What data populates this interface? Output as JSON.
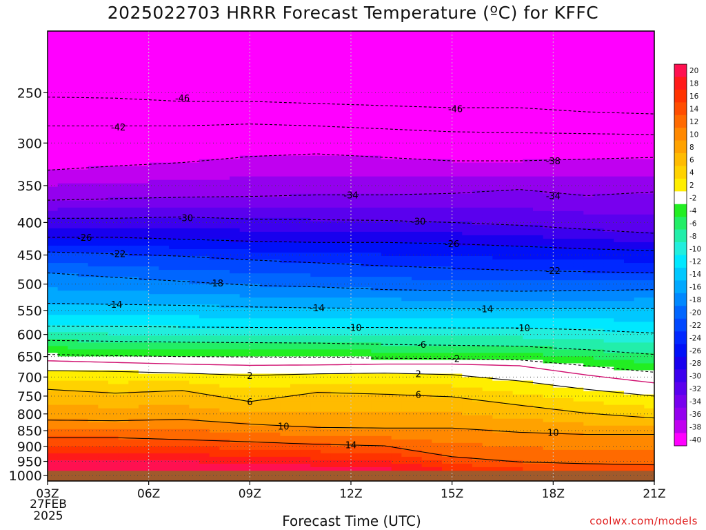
{
  "title": "2025022703 HRRR Forecast Temperature (ºC) for KFFC",
  "xlabel": "Forecast Time (UTC)",
  "credit": "coolwx.com/models",
  "start_date": {
    "line1": "27FEB",
    "line2": "2025"
  },
  "colors": {
    "ground": "#a05a2c",
    "freezing_line": "#d01070",
    "grid": "#c8c8c8"
  },
  "chart_data": {
    "type": "heatmap",
    "title": "2025022703 HRRR Forecast Temperature (ºC) for KFFC",
    "xlabel": "Forecast Time (UTC)",
    "ylabel": "",
    "x_ticks": [
      "03Z",
      "06Z",
      "09Z",
      "12Z",
      "15Z",
      "18Z",
      "21Z"
    ],
    "x_hours": [
      3,
      6,
      9,
      12,
      15,
      18,
      21
    ],
    "xlim": [
      3,
      21
    ],
    "y_ticks": [
      250,
      300,
      350,
      400,
      450,
      500,
      550,
      600,
      650,
      700,
      750,
      800,
      850,
      900,
      950,
      1000
    ],
    "ylim_hPa": [
      200,
      1020
    ],
    "y_scale": "log",
    "grid": true,
    "ground_level_hPa": 983,
    "colorbar": {
      "labels": [
        "20",
        "18",
        "16",
        "14",
        "12",
        "10",
        "8",
        "6",
        "4",
        "2",
        "-2",
        "-4",
        "-6",
        "-8",
        "-10",
        "-12",
        "-14",
        "-16",
        "-18",
        "-20",
        "-22",
        "-24",
        "-26",
        "-28",
        "-30",
        "-32",
        "-34",
        "-36",
        "-38",
        "-40"
      ],
      "colors": [
        "#ff1050",
        "#ff1a1a",
        "#ff3300",
        "#ff4d00",
        "#ff6a00",
        "#ff8800",
        "#ffa200",
        "#ffbb00",
        "#ffd200",
        "#ffee00",
        "#ffffff",
        "#22ee22",
        "#22ee66",
        "#22eeaa",
        "#22eedd",
        "#00e8ff",
        "#00c8ff",
        "#00a8ff",
        "#0088ff",
        "#0066ff",
        "#0048ff",
        "#0028ff",
        "#0010f8",
        "#1800ee",
        "#3c00ee",
        "#5a00ee",
        "#7800ee",
        "#9400ee",
        "#c000f0",
        "#ff00ff"
      ]
    },
    "isotherms": [
      {
        "label": "-46",
        "style": "dashed",
        "series": [
          [
            3,
            254
          ],
          [
            5,
            255
          ],
          [
            7,
            258
          ],
          [
            9,
            258
          ],
          [
            11,
            260
          ],
          [
            13,
            262
          ],
          [
            15,
            264
          ],
          [
            17,
            264
          ],
          [
            19,
            268
          ],
          [
            21,
            270
          ]
        ]
      },
      {
        "label": "-42",
        "style": "dashed",
        "series": [
          [
            3,
            282
          ],
          [
            5,
            282
          ],
          [
            7,
            282
          ],
          [
            9,
            280
          ],
          [
            11,
            282
          ],
          [
            13,
            285
          ],
          [
            15,
            288
          ],
          [
            17,
            289
          ],
          [
            19,
            290
          ],
          [
            21,
            291
          ]
        ]
      },
      {
        "label": "-38",
        "style": "dashed",
        "series": [
          [
            3,
            331
          ],
          [
            5,
            326
          ],
          [
            7,
            322
          ],
          [
            9,
            315
          ],
          [
            11,
            312
          ],
          [
            13,
            316
          ],
          [
            15,
            320
          ],
          [
            17,
            320
          ],
          [
            19,
            318
          ],
          [
            21,
            316
          ]
        ]
      },
      {
        "label": "-34",
        "style": "dashed",
        "series": [
          [
            3,
            369
          ],
          [
            5,
            367
          ],
          [
            7,
            365
          ],
          [
            9,
            364
          ],
          [
            11,
            362
          ],
          [
            13,
            362
          ],
          [
            15,
            360
          ],
          [
            17,
            355
          ],
          [
            19,
            363
          ],
          [
            21,
            358
          ]
        ]
      },
      {
        "label": "-30",
        "style": "dashed",
        "series": [
          [
            3,
            394
          ],
          [
            5,
            394
          ],
          [
            7,
            392
          ],
          [
            9,
            395
          ],
          [
            11,
            396
          ],
          [
            13,
            397
          ],
          [
            15,
            400
          ],
          [
            17,
            404
          ],
          [
            19,
            410
          ],
          [
            21,
            416
          ]
        ]
      },
      {
        "label": "-26",
        "style": "dashed",
        "series": [
          [
            3,
            422
          ],
          [
            5,
            422
          ],
          [
            7,
            425
          ],
          [
            9,
            428
          ],
          [
            11,
            430
          ],
          [
            13,
            430
          ],
          [
            15,
            432
          ],
          [
            17,
            436
          ],
          [
            19,
            440
          ],
          [
            21,
            443
          ]
        ]
      },
      {
        "label": "-22",
        "style": "dashed",
        "series": [
          [
            3,
            445
          ],
          [
            5,
            448
          ],
          [
            7,
            452
          ],
          [
            9,
            458
          ],
          [
            11,
            463
          ],
          [
            13,
            468
          ],
          [
            15,
            472
          ],
          [
            17,
            476
          ],
          [
            19,
            478
          ],
          [
            21,
            480
          ]
        ]
      },
      {
        "label": "-18",
        "style": "dashed",
        "series": [
          [
            3,
            480
          ],
          [
            5,
            488
          ],
          [
            7,
            495
          ],
          [
            9,
            502
          ],
          [
            11,
            505
          ],
          [
            13,
            510
          ],
          [
            15,
            512
          ],
          [
            17,
            513
          ],
          [
            19,
            512
          ],
          [
            21,
            510
          ]
        ]
      },
      {
        "label": "-14",
        "style": "dashed",
        "series": [
          [
            3,
            536
          ],
          [
            5,
            538
          ],
          [
            7,
            540
          ],
          [
            9,
            543
          ],
          [
            11,
            545
          ],
          [
            13,
            546
          ],
          [
            15,
            547
          ],
          [
            17,
            547
          ],
          [
            19,
            546
          ],
          [
            21,
            546
          ]
        ]
      },
      {
        "label": "-10",
        "style": "dashed",
        "series": [
          [
            3,
            582
          ],
          [
            5,
            583
          ],
          [
            7,
            584
          ],
          [
            9,
            585
          ],
          [
            11,
            585
          ],
          [
            13,
            585
          ],
          [
            15,
            586
          ],
          [
            17,
            586
          ],
          [
            19,
            590
          ],
          [
            21,
            597
          ]
        ]
      },
      {
        "label": "-6",
        "style": "dashed",
        "series": [
          [
            3,
            613
          ],
          [
            5,
            615
          ],
          [
            7,
            617
          ],
          [
            9,
            618
          ],
          [
            11,
            619
          ],
          [
            13,
            622
          ],
          [
            15,
            624
          ],
          [
            17,
            626
          ],
          [
            19,
            634
          ],
          [
            21,
            645
          ]
        ]
      },
      {
        "label": "-2",
        "style": "dashed",
        "series": [
          [
            3,
            645
          ],
          [
            5,
            648
          ],
          [
            7,
            650
          ],
          [
            9,
            651
          ],
          [
            11,
            652
          ],
          [
            13,
            654
          ],
          [
            15,
            655
          ],
          [
            17,
            658
          ],
          [
            19,
            672
          ],
          [
            21,
            688
          ]
        ]
      },
      {
        "label": "",
        "style": "freezing",
        "series": [
          [
            3,
            660
          ],
          [
            5,
            664
          ],
          [
            7,
            668
          ],
          [
            9,
            671
          ],
          [
            11,
            670
          ],
          [
            13,
            668
          ],
          [
            15,
            668
          ],
          [
            17,
            672
          ],
          [
            19,
            695
          ],
          [
            21,
            715
          ]
        ]
      },
      {
        "label": "2",
        "style": "solid",
        "series": [
          [
            3,
            684
          ],
          [
            5,
            686
          ],
          [
            7,
            690
          ],
          [
            9,
            696
          ],
          [
            11,
            692
          ],
          [
            13,
            690
          ],
          [
            15,
            694
          ],
          [
            17,
            710
          ],
          [
            19,
            732
          ],
          [
            21,
            750
          ]
        ]
      },
      {
        "label": "6",
        "style": "solid",
        "series": [
          [
            3,
            732
          ],
          [
            5,
            742
          ],
          [
            7,
            735
          ],
          [
            9,
            765
          ],
          [
            11,
            740
          ],
          [
            13,
            745
          ],
          [
            15,
            752
          ],
          [
            17,
            775
          ],
          [
            19,
            798
          ],
          [
            21,
            812
          ]
        ]
      },
      {
        "label": "10",
        "style": "solid",
        "series": [
          [
            3,
            818
          ],
          [
            5,
            820
          ],
          [
            7,
            816
          ],
          [
            9,
            830
          ],
          [
            11,
            840
          ],
          [
            13,
            842
          ],
          [
            15,
            842
          ],
          [
            17,
            855
          ],
          [
            19,
            862
          ],
          [
            21,
            862
          ]
        ]
      },
      {
        "label": "14",
        "style": "solid",
        "series": [
          [
            3,
            872
          ],
          [
            5,
            872
          ],
          [
            7,
            878
          ],
          [
            9,
            885
          ],
          [
            11,
            893
          ],
          [
            13,
            898
          ],
          [
            15,
            934
          ],
          [
            17,
            952
          ],
          [
            19,
            958
          ],
          [
            21,
            962
          ]
        ]
      }
    ],
    "inline_labels": [
      {
        "text": "-46",
        "hour": 7.0,
        "hPa": 255
      },
      {
        "text": "-46",
        "hour": 15.1,
        "hPa": 265
      },
      {
        "text": "-42",
        "hour": 5.1,
        "hPa": 283
      },
      {
        "text": "-38",
        "hour": 18.0,
        "hPa": 320
      },
      {
        "text": "-34",
        "hour": 12.0,
        "hPa": 362
      },
      {
        "text": "-34",
        "hour": 18.0,
        "hPa": 363
      },
      {
        "text": "-30",
        "hour": 7.1,
        "hPa": 393
      },
      {
        "text": "-30",
        "hour": 14.0,
        "hPa": 398
      },
      {
        "text": "-26",
        "hour": 4.1,
        "hPa": 422
      },
      {
        "text": "-26",
        "hour": 15.0,
        "hPa": 432
      },
      {
        "text": "-22",
        "hour": 5.1,
        "hPa": 448
      },
      {
        "text": "-22",
        "hour": 18.0,
        "hPa": 476
      },
      {
        "text": "-18",
        "hour": 8.0,
        "hPa": 498
      },
      {
        "text": "-14",
        "hour": 5.0,
        "hPa": 538
      },
      {
        "text": "-14",
        "hour": 11.0,
        "hPa": 545
      },
      {
        "text": "-14",
        "hour": 16.0,
        "hPa": 547
      },
      {
        "text": "-10",
        "hour": 12.1,
        "hPa": 585
      },
      {
        "text": "-10",
        "hour": 17.1,
        "hPa": 586
      },
      {
        "text": "-6",
        "hour": 14.1,
        "hPa": 622
      },
      {
        "text": "-2",
        "hour": 15.1,
        "hPa": 655
      },
      {
        "text": "2",
        "hour": 9.0,
        "hPa": 696
      },
      {
        "text": "2",
        "hour": 14.0,
        "hPa": 692
      },
      {
        "text": "6",
        "hour": 9.0,
        "hPa": 765
      },
      {
        "text": "6",
        "hour": 14.0,
        "hPa": 745
      },
      {
        "text": "10",
        "hour": 10.0,
        "hPa": 836
      },
      {
        "text": "10",
        "hour": 18.0,
        "hPa": 855
      },
      {
        "text": "14",
        "hour": 12.0,
        "hPa": 895
      }
    ]
  }
}
